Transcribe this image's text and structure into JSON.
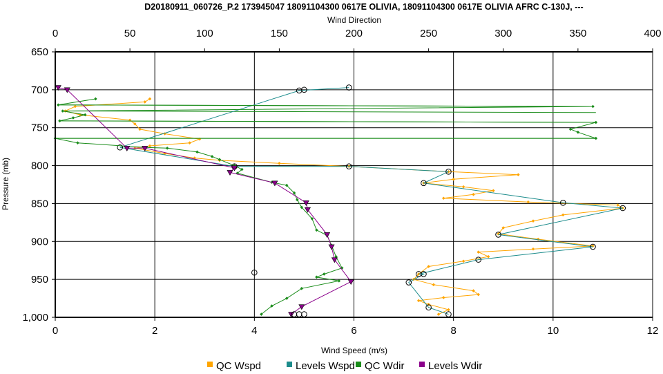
{
  "chart_data": {
    "type": "line",
    "title": "D20180911_060726_P.2 173945047 18091104300 0617E OLIVIA, 18091104300 0617E OLIVIA AFRC C-130J, ---",
    "top_axis": {
      "label": "Wind Direction",
      "range": [
        0,
        400
      ],
      "ticks": [
        "0",
        "50",
        "100",
        "150",
        "200",
        "250",
        "300",
        "350",
        "400"
      ]
    },
    "bottom_axis": {
      "label": "Wind Speed (m/s)",
      "range": [
        0,
        12
      ],
      "ticks": [
        "0",
        "2",
        "4",
        "6",
        "8",
        "10",
        "12"
      ]
    },
    "y_axis": {
      "label": "Pressure (mb)",
      "range": [
        650,
        1000
      ],
      "inverted": true,
      "ticks": [
        "650",
        "700",
        "750",
        "800",
        "850",
        "900",
        "950",
        "1,000"
      ]
    },
    "grid": true,
    "legend_position": "bottom",
    "series": [
      {
        "name": "QC Wspd",
        "axis": "bottom",
        "color": "#ffa500",
        "marker": "diamond",
        "points": [
          [
            1.9,
            712
          ],
          [
            1.8,
            716
          ],
          [
            0.4,
            722
          ],
          [
            0.2,
            728
          ],
          [
            0.5,
            733
          ],
          [
            1.5,
            740
          ],
          [
            1.6,
            745
          ],
          [
            1.7,
            752
          ],
          [
            2.2,
            758
          ],
          [
            2.9,
            765
          ],
          [
            2.7,
            770
          ],
          [
            1.9,
            774
          ],
          [
            1.6,
            777
          ],
          [
            2.2,
            784
          ],
          [
            2.8,
            790
          ],
          [
            3.3,
            793
          ],
          [
            4.5,
            797
          ],
          [
            5.9,
            801
          ],
          [
            7.9,
            808
          ],
          [
            9.3,
            812
          ],
          [
            8.0,
            818
          ],
          [
            7.4,
            823
          ],
          [
            8.2,
            828
          ],
          [
            8.8,
            833
          ],
          [
            8.4,
            838
          ],
          [
            7.8,
            843
          ],
          [
            9.5,
            848
          ],
          [
            11.3,
            852
          ],
          [
            11.4,
            856
          ],
          [
            10.2,
            865
          ],
          [
            9.6,
            873
          ],
          [
            9.0,
            882
          ],
          [
            8.9,
            890
          ],
          [
            9.7,
            897
          ],
          [
            10.8,
            906
          ],
          [
            9.6,
            910
          ],
          [
            8.5,
            914
          ],
          [
            8.7,
            920
          ],
          [
            8.2,
            926
          ],
          [
            7.5,
            933
          ],
          [
            7.3,
            943
          ],
          [
            7.2,
            950
          ],
          [
            7.6,
            957
          ],
          [
            8.4,
            965
          ],
          [
            8.5,
            970
          ],
          [
            7.8,
            974
          ],
          [
            7.3,
            978
          ],
          [
            7.5,
            983
          ],
          [
            7.9,
            990
          ],
          [
            7.7,
            996
          ]
        ]
      },
      {
        "name": "Levels Wspd",
        "axis": "bottom",
        "color": "#1c8c8c",
        "marker": "circle",
        "points": [
          [
            5.9,
            697
          ],
          [
            4.9,
            701
          ],
          [
            1.3,
            776
          ],
          [
            3.6,
            801
          ],
          [
            5.9,
            801
          ],
          [
            7.9,
            808
          ],
          [
            7.4,
            823
          ],
          [
            10.2,
            849
          ],
          [
            11.4,
            856
          ],
          [
            8.9,
            891
          ],
          [
            10.8,
            907
          ],
          [
            8.5,
            924
          ],
          [
            7.3,
            943
          ],
          [
            7.4,
            943
          ],
          [
            7.1,
            954
          ],
          [
            7.5,
            987
          ],
          [
            7.9,
            996
          ]
        ]
      },
      {
        "name": "QC Wdir",
        "axis": "top",
        "color": "#1a8c1a",
        "marker": "diamond",
        "points": [
          [
            27,
            712
          ],
          [
            2,
            720
          ],
          [
            360,
            722
          ],
          [
            5,
            728
          ],
          [
            20,
            733
          ],
          [
            12,
            737
          ],
          [
            3,
            741
          ],
          [
            362,
            743
          ],
          [
            345,
            752
          ],
          [
            350,
            756
          ],
          [
            362,
            764
          ],
          [
            0,
            764
          ],
          [
            15,
            770
          ],
          [
            60,
            776
          ],
          [
            75,
            777
          ],
          [
            95,
            782
          ],
          [
            105,
            788
          ],
          [
            110,
            792
          ],
          [
            120,
            800
          ],
          [
            125,
            805
          ],
          [
            122,
            810
          ],
          [
            145,
            822
          ],
          [
            155,
            826
          ],
          [
            160,
            836
          ],
          [
            162,
            845
          ],
          [
            165,
            855
          ],
          [
            172,
            870
          ],
          [
            175,
            885
          ],
          [
            182,
            892
          ],
          [
            185,
            905
          ],
          [
            188,
            920
          ],
          [
            192,
            935
          ],
          [
            180,
            943
          ],
          [
            175,
            947
          ],
          [
            190,
            952
          ],
          [
            165,
            962
          ],
          [
            155,
            975
          ],
          [
            145,
            985
          ],
          [
            138,
            996
          ]
        ]
      },
      {
        "name": "Levels Wdir",
        "axis": "top",
        "color": "#8b008b",
        "marker": "triangle",
        "points": [
          [
            2,
            697
          ],
          [
            8,
            700
          ],
          [
            48,
            777
          ],
          [
            60,
            777
          ],
          [
            120,
            803
          ],
          [
            117,
            809
          ],
          [
            147,
            823
          ],
          [
            168,
            849
          ],
          [
            169,
            858
          ],
          [
            182,
            891
          ],
          [
            185,
            907
          ],
          [
            187,
            924
          ],
          [
            198,
            953
          ],
          [
            165,
            986
          ],
          [
            158,
            996
          ]
        ]
      }
    ],
    "crossings": {
      "color": "#1a8c1a",
      "lines": [
        [
          [
            2,
            720
          ],
          [
            360,
            722
          ]
        ],
        [
          [
            5,
            728
          ],
          [
            362,
            730
          ]
        ],
        [
          [
            3,
            741
          ],
          [
            362,
            743
          ]
        ],
        [
          [
            0,
            764
          ],
          [
            362,
            764
          ]
        ]
      ]
    },
    "extra_markers": {
      "color": "#000000",
      "points": [
        [
          5.0,
          700
        ],
        [
          4.0,
          941
        ],
        [
          4.9,
          996
        ],
        [
          4.8,
          996
        ],
        [
          5.0,
          996
        ]
      ]
    }
  }
}
